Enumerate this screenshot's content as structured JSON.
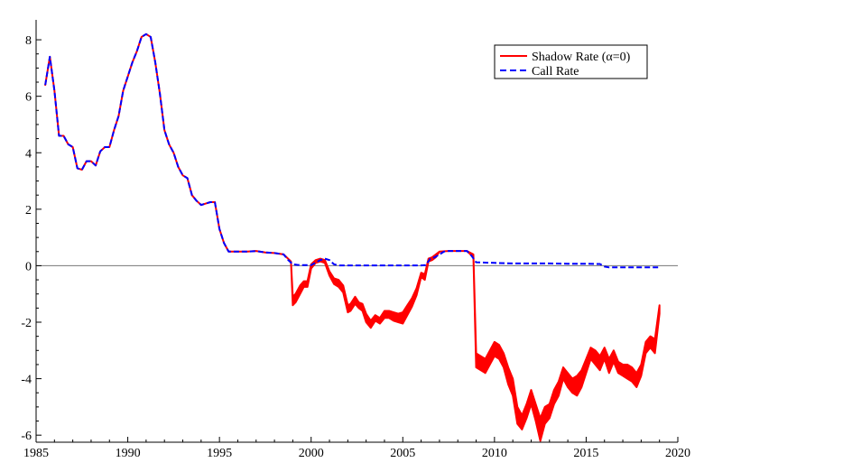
{
  "chart_data": {
    "type": "line",
    "title": "",
    "xlabel": "",
    "ylabel": "",
    "xlim": [
      1985,
      2020
    ],
    "ylim": [
      -6.3,
      8.4
    ],
    "x_ticks": [
      1985,
      1990,
      1995,
      2000,
      2005,
      2010,
      2015,
      2020
    ],
    "y_ticks": [
      -6,
      -4,
      -2,
      0,
      2,
      4,
      6,
      8
    ],
    "grid": false,
    "zero_line": true,
    "legend_position": "top-right",
    "legend": [
      {
        "label": "Shadow Rate (α=0)",
        "style": "solid",
        "color": "#ff0000"
      },
      {
        "label": "Call Rate",
        "style": "dashed",
        "color": "#0000ff"
      }
    ],
    "series": [
      {
        "name": "Call Rate",
        "color": "#0000ff",
        "style": "dashed",
        "x": [
          1985.5,
          1985.75,
          1986.0,
          1986.25,
          1986.5,
          1986.75,
          1987.0,
          1987.25,
          1987.5,
          1987.75,
          1988.0,
          1988.25,
          1988.5,
          1988.75,
          1989.0,
          1989.25,
          1989.5,
          1989.75,
          1990.0,
          1990.25,
          1990.5,
          1990.75,
          1991.0,
          1991.25,
          1991.5,
          1991.75,
          1992.0,
          1992.25,
          1992.5,
          1992.75,
          1993.0,
          1993.25,
          1993.5,
          1993.75,
          1994.0,
          1994.25,
          1994.5,
          1994.75,
          1995.0,
          1995.25,
          1995.5,
          1995.75,
          1996.0,
          1996.5,
          1997.0,
          1997.5,
          1998.0,
          1998.5,
          1998.75,
          1999.0,
          1999.25,
          1999.5,
          2000.0,
          2000.5,
          2000.75,
          2001.0,
          2001.25,
          2001.5,
          2002.0,
          2003.0,
          2004.0,
          2005.0,
          2006.0,
          2006.25,
          2006.5,
          2006.75,
          2007.0,
          2007.25,
          2007.5,
          2008.0,
          2008.5,
          2008.75,
          2009.0,
          2010.0,
          2011.0,
          2012.0,
          2013.0,
          2014.0,
          2015.0,
          2015.75,
          2016.0,
          2016.25,
          2017.0,
          2018.0,
          2018.5,
          2019.0
        ],
        "y": [
          6.4,
          7.4,
          6.2,
          4.6,
          4.6,
          4.3,
          4.2,
          3.45,
          3.4,
          3.7,
          3.7,
          3.55,
          4.05,
          4.2,
          4.2,
          4.8,
          5.3,
          6.2,
          6.7,
          7.2,
          7.6,
          8.1,
          8.2,
          8.1,
          7.2,
          6.1,
          4.8,
          4.3,
          4.0,
          3.5,
          3.2,
          3.1,
          2.5,
          2.3,
          2.15,
          2.2,
          2.25,
          2.25,
          1.3,
          0.8,
          0.5,
          0.5,
          0.5,
          0.5,
          0.52,
          0.47,
          0.45,
          0.4,
          0.2,
          0.05,
          0.03,
          0.02,
          0.02,
          0.2,
          0.25,
          0.2,
          0.05,
          0.01,
          0.01,
          0.01,
          0.01,
          0.01,
          0.01,
          0.02,
          0.25,
          0.3,
          0.4,
          0.5,
          0.52,
          0.52,
          0.52,
          0.35,
          0.12,
          0.1,
          0.08,
          0.08,
          0.08,
          0.07,
          0.07,
          0.06,
          -0.03,
          -0.06,
          -0.06,
          -0.06,
          -0.06,
          -0.06
        ]
      },
      {
        "name": "Shadow Rate (α=0)",
        "color": "#ff0000",
        "style": "band",
        "x": [
          1985.5,
          1985.75,
          1986.0,
          1986.25,
          1986.5,
          1986.75,
          1987.0,
          1987.25,
          1987.5,
          1987.75,
          1988.0,
          1988.25,
          1988.5,
          1988.75,
          1989.0,
          1989.25,
          1989.5,
          1989.75,
          1990.0,
          1990.25,
          1990.5,
          1990.75,
          1991.0,
          1991.25,
          1991.5,
          1991.75,
          1992.0,
          1992.25,
          1992.5,
          1992.75,
          1993.0,
          1993.25,
          1993.5,
          1993.75,
          1994.0,
          1994.25,
          1994.5,
          1994.75,
          1995.0,
          1995.25,
          1995.5,
          1995.75,
          1996.0,
          1996.5,
          1997.0,
          1997.5,
          1998.0,
          1998.5,
          1998.9,
          1999.0,
          1999.15,
          1999.4,
          1999.6,
          1999.8,
          2000.0,
          2000.25,
          2000.5,
          2000.75,
          2001.0,
          2001.25,
          2001.5,
          2001.75,
          2002.0,
          2002.15,
          2002.4,
          2002.6,
          2002.8,
          2003.0,
          2003.25,
          2003.5,
          2003.75,
          2004.0,
          2004.25,
          2004.5,
          2004.75,
          2005.0,
          2005.25,
          2005.5,
          2005.75,
          2006.0,
          2006.2,
          2006.4,
          2006.6,
          2006.8,
          2007.0,
          2007.5,
          2008.0,
          2008.5,
          2008.85,
          2009.0,
          2009.25,
          2009.5,
          2009.75,
          2010.0,
          2010.25,
          2010.5,
          2010.75,
          2011.0,
          2011.25,
          2011.5,
          2011.75,
          2012.0,
          2012.25,
          2012.5,
          2012.75,
          2013.0,
          2013.25,
          2013.5,
          2013.75,
          2014.0,
          2014.25,
          2014.5,
          2014.75,
          2015.0,
          2015.25,
          2015.5,
          2015.75,
          2016.0,
          2016.25,
          2016.5,
          2016.75,
          2017.0,
          2017.25,
          2017.5,
          2017.75,
          2018.0,
          2018.25,
          2018.5,
          2018.75,
          2019.0
        ],
        "y_upper": [
          6.4,
          7.4,
          6.2,
          4.6,
          4.6,
          4.3,
          4.2,
          3.45,
          3.4,
          3.7,
          3.7,
          3.55,
          4.05,
          4.2,
          4.2,
          4.8,
          5.3,
          6.2,
          6.7,
          7.2,
          7.6,
          8.1,
          8.2,
          8.1,
          7.2,
          6.1,
          4.8,
          4.3,
          4.0,
          3.5,
          3.2,
          3.1,
          2.5,
          2.3,
          2.15,
          2.2,
          2.25,
          2.25,
          1.3,
          0.8,
          0.5,
          0.5,
          0.5,
          0.5,
          0.52,
          0.47,
          0.45,
          0.4,
          0.15,
          -1.1,
          -1.0,
          -0.7,
          -0.55,
          -0.55,
          0.05,
          0.2,
          0.25,
          0.2,
          -0.2,
          -0.45,
          -0.5,
          -0.7,
          -1.4,
          -1.35,
          -1.1,
          -1.3,
          -1.35,
          -1.7,
          -1.95,
          -1.75,
          -1.85,
          -1.6,
          -1.6,
          -1.65,
          -1.7,
          -1.65,
          -1.4,
          -1.15,
          -0.8,
          -0.25,
          -0.3,
          0.25,
          0.3,
          0.4,
          0.5,
          0.52,
          0.52,
          0.52,
          0.4,
          -3.1,
          -3.2,
          -3.3,
          -3.0,
          -2.7,
          -2.8,
          -3.1,
          -3.6,
          -4.0,
          -5.0,
          -5.3,
          -4.9,
          -4.4,
          -4.9,
          -5.4,
          -5.0,
          -4.9,
          -4.4,
          -4.1,
          -3.6,
          -3.8,
          -4.0,
          -3.9,
          -3.7,
          -3.3,
          -2.9,
          -3.0,
          -3.2,
          -2.9,
          -3.3,
          -3.0,
          -3.4,
          -3.5,
          -3.5,
          -3.6,
          -3.8,
          -3.5,
          -2.7,
          -2.5,
          -2.6,
          -1.4
        ],
        "y_lower": [
          6.4,
          7.4,
          6.2,
          4.6,
          4.6,
          4.3,
          4.2,
          3.45,
          3.4,
          3.7,
          3.7,
          3.55,
          4.05,
          4.2,
          4.2,
          4.8,
          5.3,
          6.2,
          6.7,
          7.2,
          7.6,
          8.1,
          8.2,
          8.1,
          7.2,
          6.1,
          4.8,
          4.3,
          4.0,
          3.5,
          3.2,
          3.1,
          2.5,
          2.3,
          2.15,
          2.2,
          2.25,
          2.25,
          1.3,
          0.8,
          0.5,
          0.5,
          0.5,
          0.5,
          0.52,
          0.47,
          0.45,
          0.4,
          0.15,
          -1.4,
          -1.3,
          -1.0,
          -0.75,
          -0.75,
          -0.1,
          0.1,
          0.15,
          0.1,
          -0.35,
          -0.65,
          -0.75,
          -0.95,
          -1.65,
          -1.6,
          -1.35,
          -1.5,
          -1.6,
          -2.0,
          -2.2,
          -1.95,
          -2.05,
          -1.85,
          -1.85,
          -1.95,
          -2.0,
          -2.05,
          -1.75,
          -1.45,
          -1.05,
          -0.4,
          -0.5,
          0.15,
          0.2,
          0.3,
          0.5,
          0.52,
          0.52,
          0.52,
          0.3,
          -3.6,
          -3.7,
          -3.8,
          -3.5,
          -3.2,
          -3.3,
          -3.6,
          -4.2,
          -4.6,
          -5.6,
          -5.8,
          -5.4,
          -4.9,
          -5.5,
          -6.2,
          -5.6,
          -5.4,
          -4.9,
          -4.6,
          -4.0,
          -4.3,
          -4.5,
          -4.6,
          -4.3,
          -3.8,
          -3.3,
          -3.5,
          -3.7,
          -3.3,
          -3.8,
          -3.4,
          -3.8,
          -3.9,
          -4.0,
          -4.1,
          -4.3,
          -3.9,
          -3.1,
          -2.9,
          -3.1,
          -1.7
        ]
      }
    ]
  }
}
